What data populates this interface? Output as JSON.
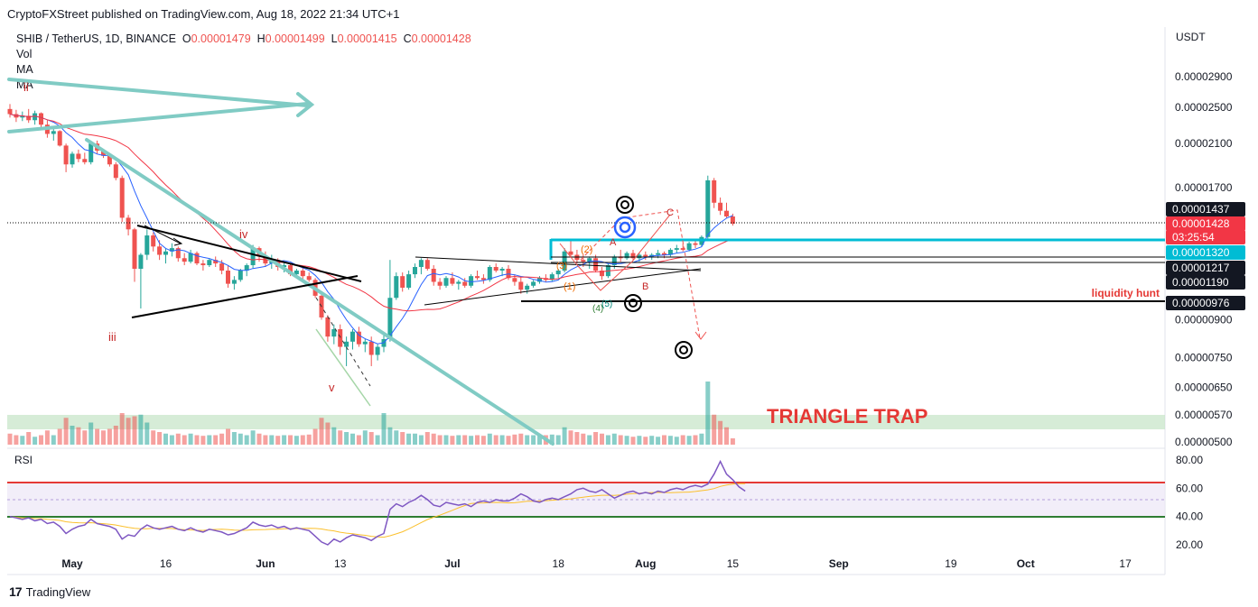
{
  "header": {
    "publisher": "CryptoFXStreet published on TradingView.com, Aug 18, 2022 21:34 UTC+1"
  },
  "legend": {
    "symbol": "SHIB / TetherUS, 1D, BINANCE",
    "o_label": "O",
    "o_value": "0.00001479",
    "h_label": "H",
    "h_value": "0.00001499",
    "l_label": "L",
    "l_value": "0.00001415",
    "c_label": "C",
    "c_value": "0.00001428",
    "indicators": [
      "Vol",
      "MA",
      "MA"
    ]
  },
  "price_axis": {
    "currency": "USDT",
    "ticks": [
      "0.00002900",
      "0.00002500",
      "0.00002100",
      "0.00001700",
      "0.00000900",
      "0.00000750",
      "0.00000650",
      "0.00000570",
      "0.00000500"
    ]
  },
  "price_labels": [
    {
      "text": "0.00001437",
      "style": "dark"
    },
    {
      "text": "0.00001428",
      "style": "red"
    },
    {
      "text": "03:25:54",
      "style": "red"
    },
    {
      "text": "0.00001320",
      "style": "cyan"
    },
    {
      "text": "0.00001217",
      "style": "dark"
    },
    {
      "text": "0.00001190",
      "style": "dark"
    },
    {
      "text": "0.00000976",
      "style": "dark"
    }
  ],
  "rsi": {
    "label": "RSI",
    "ticks": [
      "80.00",
      "60.00",
      "40.00",
      "20.00"
    ]
  },
  "time_axis": {
    "ticks": [
      "May",
      "16",
      "Jun",
      "13",
      "Jul",
      "18",
      "Aug",
      "15",
      "Sep",
      "19",
      "Oct",
      "17"
    ]
  },
  "annotations": {
    "triangle_trap": "TRIANGLE TRAP",
    "liquidity_hunt": "liquidity hunt",
    "wave_labels": [
      "ii",
      "iii",
      "iv",
      "v",
      "A",
      "B",
      "C",
      "(1)",
      "(2)",
      "(3)",
      "(4)",
      "(5)"
    ]
  },
  "footer": {
    "brand": "TradingView"
  },
  "colors": {
    "up": "#26a69a",
    "down": "#ef5350",
    "cyan_line": "#00bcd4",
    "rsi_line": "#7e57c2",
    "ma_fast": "#2962ff",
    "ma_slow": "#f23645",
    "teal_trend": "#80cbc4",
    "zone_fill": "#c8e6c9",
    "label_red": "#e53935"
  },
  "chart_data": [
    {
      "type": "candlestick",
      "title": "SHIB / TetherUS, 1D, BINANCE",
      "ylabel": "USDT",
      "ylim": [
        5e-06,
        3.1e-05
      ],
      "y_scale": "log",
      "dates_start": "2022-04-21",
      "ohlc": [
        [
          2.48e-05,
          2.54e-05,
          2.38e-05,
          2.42e-05
        ],
        [
          2.42e-05,
          2.47e-05,
          2.33e-05,
          2.38e-05
        ],
        [
          2.38e-05,
          2.45e-05,
          2.34e-05,
          2.4e-05
        ],
        [
          2.4e-05,
          2.48e-05,
          2.32e-05,
          2.35e-05
        ],
        [
          2.35e-05,
          2.46e-05,
          2.3e-05,
          2.43e-05
        ],
        [
          2.43e-05,
          2.44e-05,
          2.27e-05,
          2.3e-05
        ],
        [
          2.3e-05,
          2.35e-05,
          2.16e-05,
          2.2e-05
        ],
        [
          2.2e-05,
          2.26e-05,
          2.13e-05,
          2.23e-05
        ],
        [
          2.23e-05,
          2.24e-05,
          2.07e-05,
          2.08e-05
        ],
        [
          2.08e-05,
          2.1e-05,
          1.83e-05,
          1.9e-05
        ],
        [
          1.9e-05,
          2.02e-05,
          1.87e-05,
          2e-05
        ],
        [
          2e-05,
          2.04e-05,
          1.92e-05,
          1.95e-05
        ],
        [
          1.95e-05,
          2.01e-05,
          1.9e-05,
          1.92e-05
        ],
        [
          1.92e-05,
          2.11e-05,
          1.9e-05,
          2.1e-05
        ],
        [
          2.1e-05,
          2.13e-05,
          2e-05,
          2.03e-05
        ],
        [
          2.03e-05,
          2.04e-05,
          1.96e-05,
          1.98e-05
        ],
        [
          1.98e-05,
          2e-05,
          1.88e-05,
          1.9e-05
        ],
        [
          1.9e-05,
          1.92e-05,
          1.76e-05,
          1.78e-05
        ],
        [
          1.78e-05,
          1.8e-05,
          1.44e-05,
          1.47e-05
        ],
        [
          1.47e-05,
          1.49e-05,
          1.35e-05,
          1.39e-05
        ],
        [
          1.39e-05,
          1.4e-05,
          1.08e-05,
          1.15e-05
        ],
        [
          1.15e-05,
          1.24e-05,
          9.5e-06,
          1.23e-05
        ],
        [
          1.23e-05,
          1.39e-05,
          1.2e-05,
          1.35e-05
        ],
        [
          1.35e-05,
          1.37e-05,
          1.25e-05,
          1.28e-05
        ],
        [
          1.28e-05,
          1.32e-05,
          1.2e-05,
          1.23e-05
        ],
        [
          1.23e-05,
          1.27e-05,
          1.18e-05,
          1.25e-05
        ],
        [
          1.25e-05,
          1.3e-05,
          1.22e-05,
          1.27e-05
        ],
        [
          1.27e-05,
          1.28e-05,
          1.19e-05,
          1.21e-05
        ],
        [
          1.21e-05,
          1.24e-05,
          1.17e-05,
          1.19e-05
        ],
        [
          1.19e-05,
          1.26e-05,
          1.18e-05,
          1.24e-05
        ],
        [
          1.24e-05,
          1.25e-05,
          1.17e-05,
          1.18e-05
        ],
        [
          1.18e-05,
          1.2e-05,
          1.14e-05,
          1.17e-05
        ],
        [
          1.17e-05,
          1.21e-05,
          1.16e-05,
          1.2e-05
        ],
        [
          1.2e-05,
          1.22e-05,
          1.16e-05,
          1.18e-05
        ],
        [
          1.18e-05,
          1.2e-05,
          1.12e-05,
          1.14e-05
        ],
        [
          1.14e-05,
          1.17e-05,
          1.05e-05,
          1.07e-05
        ],
        [
          1.07e-05,
          1.11e-05,
          1.04e-05,
          1.09e-05
        ],
        [
          1.09e-05,
          1.15e-05,
          1.08e-05,
          1.14e-05
        ],
        [
          1.14e-05,
          1.18e-05,
          1.11e-05,
          1.17e-05
        ],
        [
          1.17e-05,
          1.29e-05,
          1.15e-05,
          1.27e-05
        ],
        [
          1.27e-05,
          1.28e-05,
          1.19e-05,
          1.22e-05
        ],
        [
          1.22e-05,
          1.25e-05,
          1.16e-05,
          1.18e-05
        ],
        [
          1.18e-05,
          1.23e-05,
          1.15e-05,
          1.2e-05
        ],
        [
          1.2e-05,
          1.21e-05,
          1.14e-05,
          1.16e-05
        ],
        [
          1.16e-05,
          1.19e-05,
          1.13e-05,
          1.17e-05
        ],
        [
          1.17e-05,
          1.18e-05,
          1.11e-05,
          1.12e-05
        ],
        [
          1.12e-05,
          1.15e-05,
          1.1e-05,
          1.14e-05
        ],
        [
          1.14e-05,
          1.16e-05,
          1.09e-05,
          1.11e-05
        ],
        [
          1.11e-05,
          1.13e-05,
          1.08e-05,
          1.09e-05
        ],
        [
          1.09e-05,
          1.1e-05,
          1e-05,
          1.01e-05
        ],
        [
          1.01e-05,
          1.02e-05,
          9e-06,
          9.1e-06
        ],
        [
          9.1e-06,
          9.2e-06,
          8.1e-06,
          8.3e-06
        ],
        [
          8.3e-06,
          8.8e-06,
          8e-06,
          8.6e-06
        ],
        [
          8.6e-06,
          8.8e-06,
          7.6e-06,
          7.9e-06
        ],
        [
          7.9e-06,
          8.3e-06,
          7.2e-06,
          8.1e-06
        ],
        [
          8.1e-06,
          8.6e-06,
          7.8e-06,
          8.5e-06
        ],
        [
          8.5e-06,
          8.7e-06,
          7.9e-06,
          8e-06
        ],
        [
          8e-06,
          8.2e-06,
          7.7e-06,
          8.1e-06
        ],
        [
          8.1e-06,
          8.3e-06,
          7.2e-06,
          7.6e-06
        ],
        [
          7.6e-06,
          8e-06,
          7.4e-06,
          7.9e-06
        ],
        [
          7.9e-06,
          8.4e-06,
          7.7e-06,
          8.2e-06
        ],
        [
          8.2e-06,
          1.2e-05,
          8.1e-06,
          1e-05
        ],
        [
          1e-05,
          1.13e-05,
          9.9e-06,
          1.11e-05
        ],
        [
          1.11e-05,
          1.13e-05,
          1.03e-05,
          1.05e-05
        ],
        [
          1.05e-05,
          1.14e-05,
          1.04e-05,
          1.12e-05
        ],
        [
          1.12e-05,
          1.18e-05,
          1.1e-05,
          1.16e-05
        ],
        [
          1.16e-05,
          1.21e-05,
          1.12e-05,
          1.2e-05
        ],
        [
          1.2e-05,
          1.21e-05,
          1.14e-05,
          1.15e-05
        ],
        [
          1.15e-05,
          1.17e-05,
          1.06e-05,
          1.08e-05
        ],
        [
          1.08e-05,
          1.1e-05,
          1.04e-05,
          1.06e-05
        ],
        [
          1.06e-05,
          1.11e-05,
          1.05e-05,
          1.1e-05
        ],
        [
          1.1e-05,
          1.13e-05,
          1.06e-05,
          1.07e-05
        ],
        [
          1.07e-05,
          1.09e-05,
          1.04e-05,
          1.08e-05
        ],
        [
          1.08e-05,
          1.1e-05,
          1.05e-05,
          1.06e-05
        ],
        [
          1.06e-05,
          1.12e-05,
          1.05e-05,
          1.11e-05
        ],
        [
          1.11e-05,
          1.14e-05,
          1.09e-05,
          1.1e-05
        ],
        [
          1.1e-05,
          1.12e-05,
          1.07e-05,
          1.09e-05
        ],
        [
          1.09e-05,
          1.17e-05,
          1.08e-05,
          1.16e-05
        ],
        [
          1.16e-05,
          1.18e-05,
          1.13e-05,
          1.14e-05
        ],
        [
          1.14e-05,
          1.16e-05,
          1.11e-05,
          1.15e-05
        ],
        [
          1.15e-05,
          1.17e-05,
          1.09e-05,
          1.1e-05
        ],
        [
          1.1e-05,
          1.12e-05,
          1.06e-05,
          1.08e-05
        ],
        [
          1.08e-05,
          1.11e-05,
          1.02e-05,
          1.04e-05
        ],
        [
          1.04e-05,
          1.07e-05,
          1.02e-05,
          1.06e-05
        ],
        [
          1.06e-05,
          1.09e-05,
          1.05e-05,
          1.08e-05
        ],
        [
          1.08e-05,
          1.11e-05,
          1.07e-05,
          1.1e-05
        ],
        [
          1.1e-05,
          1.12e-05,
          1.08e-05,
          1.09e-05
        ],
        [
          1.09e-05,
          1.13e-05,
          1.08e-05,
          1.12e-05
        ],
        [
          1.12e-05,
          1.15e-05,
          1.1e-05,
          1.14e-05
        ],
        [
          1.14e-05,
          1.27e-05,
          1.13e-05,
          1.25e-05
        ],
        [
          1.25e-05,
          1.32e-05,
          1.22e-05,
          1.23e-05
        ],
        [
          1.23e-05,
          1.26e-05,
          1.18e-05,
          1.2e-05
        ],
        [
          1.2e-05,
          1.23e-05,
          1.16e-05,
          1.19e-05
        ],
        [
          1.19e-05,
          1.22e-05,
          1.15e-05,
          1.21e-05
        ],
        [
          1.21e-05,
          1.23e-05,
          1.13e-05,
          1.14e-05
        ],
        [
          1.14e-05,
          1.16e-05,
          1.09e-05,
          1.11e-05
        ],
        [
          1.11e-05,
          1.18e-05,
          1.1e-05,
          1.17e-05
        ],
        [
          1.17e-05,
          1.23e-05,
          1.15e-05,
          1.22e-05
        ],
        [
          1.22e-05,
          1.26e-05,
          1.19e-05,
          1.21e-05
        ],
        [
          1.21e-05,
          1.25e-05,
          1.2e-05,
          1.24e-05
        ],
        [
          1.24e-05,
          1.26e-05,
          1.2e-05,
          1.21e-05
        ],
        [
          1.21e-05,
          1.24e-05,
          1.19e-05,
          1.23e-05
        ],
        [
          1.23e-05,
          1.25e-05,
          1.2e-05,
          1.22e-05
        ],
        [
          1.22e-05,
          1.24e-05,
          1.2e-05,
          1.23e-05
        ],
        [
          1.23e-05,
          1.26e-05,
          1.21e-05,
          1.24e-05
        ],
        [
          1.24e-05,
          1.25e-05,
          1.21e-05,
          1.23e-05
        ],
        [
          1.23e-05,
          1.27e-05,
          1.22e-05,
          1.26e-05
        ],
        [
          1.26e-05,
          1.29e-05,
          1.24e-05,
          1.27e-05
        ],
        [
          1.27e-05,
          1.3e-05,
          1.25e-05,
          1.26e-05
        ],
        [
          1.26e-05,
          1.31e-05,
          1.25e-05,
          1.3e-05
        ],
        [
          1.3e-05,
          1.33e-05,
          1.27e-05,
          1.29e-05
        ],
        [
          1.29e-05,
          1.35e-05,
          1.28e-05,
          1.34e-05
        ],
        [
          1.34e-05,
          1.8e-05,
          1.33e-05,
          1.76e-05
        ],
        [
          1.76e-05,
          1.78e-05,
          1.54e-05,
          1.58e-05
        ],
        [
          1.58e-05,
          1.62e-05,
          1.49e-05,
          1.52e-05
        ],
        [
          1.52e-05,
          1.58e-05,
          1.47e-05,
          1.479e-05
        ],
        [
          1.479e-05,
          1.499e-05,
          1.415e-05,
          1.428e-05
        ]
      ],
      "volume_relative": [
        0.35,
        0.3,
        0.28,
        0.4,
        0.25,
        0.3,
        0.45,
        0.3,
        0.5,
        0.85,
        0.6,
        0.55,
        0.45,
        0.7,
        0.5,
        0.45,
        0.5,
        0.6,
        1.0,
        0.85,
        0.9,
        0.95,
        0.7,
        0.45,
        0.4,
        0.35,
        0.3,
        0.35,
        0.3,
        0.35,
        0.3,
        0.28,
        0.3,
        0.3,
        0.35,
        0.5,
        0.4,
        0.35,
        0.3,
        0.45,
        0.35,
        0.3,
        0.3,
        0.28,
        0.3,
        0.3,
        0.28,
        0.3,
        0.32,
        0.5,
        0.85,
        0.7,
        0.55,
        0.45,
        0.4,
        0.35,
        0.3,
        0.45,
        0.4,
        0.3,
        1.0,
        0.55,
        0.45,
        0.4,
        0.35,
        0.35,
        0.3,
        0.4,
        0.35,
        0.3,
        0.3,
        0.28,
        0.3,
        0.3,
        0.28,
        0.3,
        0.28,
        0.35,
        0.3,
        0.3,
        0.28,
        0.32,
        0.35,
        0.3,
        0.3,
        0.28,
        0.3,
        0.32,
        0.3,
        0.55,
        0.45,
        0.4,
        0.35,
        0.3,
        0.4,
        0.35,
        0.3,
        0.35,
        0.3,
        0.28,
        0.25,
        0.28,
        0.25,
        0.28,
        0.25,
        0.3,
        0.28,
        0.25,
        0.3,
        0.28,
        0.3,
        0.35,
        2.0,
        0.95,
        0.75,
        0.55,
        0.2
      ],
      "rsi": [
        40,
        39,
        38,
        39,
        37,
        38,
        35,
        36,
        33,
        28,
        31,
        33,
        34,
        38,
        35,
        34,
        33,
        31,
        24,
        27,
        26,
        31,
        34,
        32,
        31,
        32,
        33,
        31,
        30,
        32,
        30,
        29,
        31,
        30,
        29,
        27,
        28,
        30,
        32,
        36,
        34,
        33,
        34,
        32,
        33,
        31,
        32,
        31,
        30,
        26,
        22,
        20,
        24,
        22,
        25,
        27,
        26,
        25,
        23,
        26,
        28,
        45,
        49,
        47,
        50,
        52,
        55,
        52,
        48,
        47,
        50,
        49,
        48,
        49,
        47,
        50,
        51,
        50,
        52,
        51,
        51,
        53,
        56,
        54,
        51,
        50,
        52,
        53,
        52,
        54,
        56,
        59,
        60,
        58,
        57,
        59,
        56,
        53,
        55,
        57,
        58,
        56,
        57,
        56,
        58,
        57,
        59,
        60,
        59,
        61,
        62,
        61,
        63,
        70,
        79,
        70,
        66,
        61,
        58
      ]
    }
  ]
}
